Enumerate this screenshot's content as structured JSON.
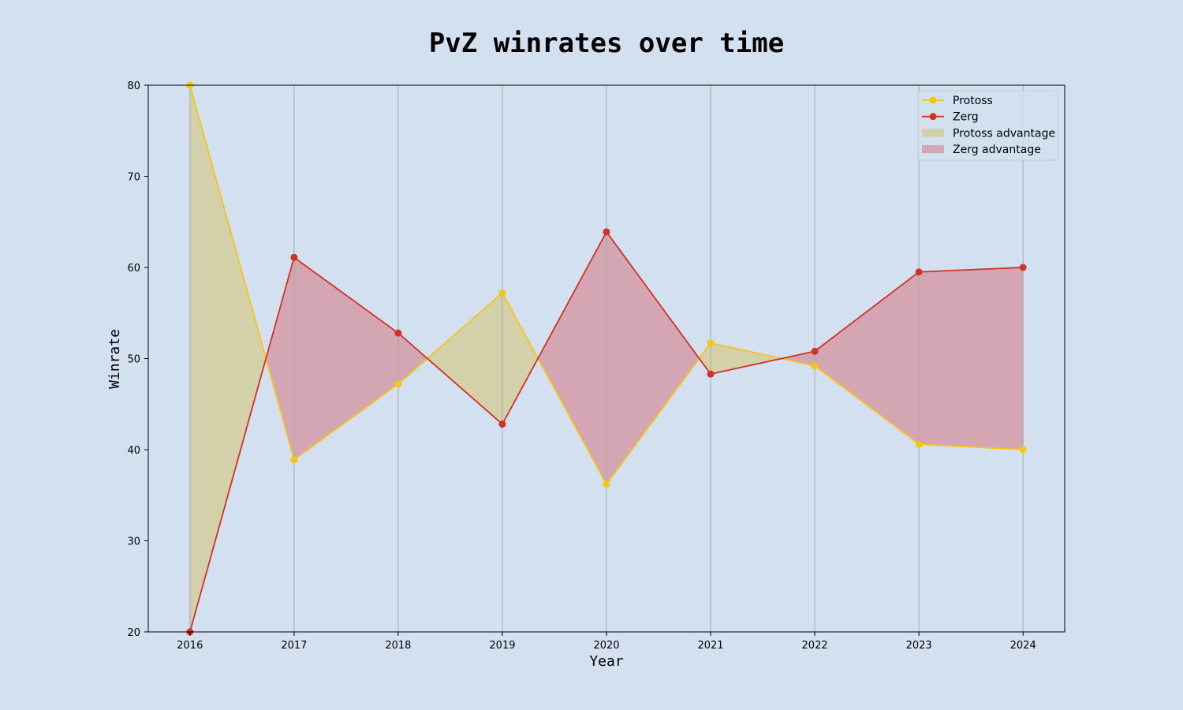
{
  "chart_data": {
    "type": "line",
    "title": "PvZ winrates over time",
    "xlabel": "Year",
    "ylabel": "Winrate",
    "x": [
      2016,
      2017,
      2018,
      2019,
      2020,
      2021,
      2022,
      2023,
      2024
    ],
    "series": [
      {
        "name": "Protoss",
        "values": [
          80,
          38.9,
          47.2,
          57.2,
          36.2,
          51.7,
          49.2,
          40.6,
          40.0
        ],
        "color": "#f5c518"
      },
      {
        "name": "Zerg",
        "values": [
          20,
          61.1,
          52.8,
          42.8,
          63.9,
          48.3,
          50.8,
          59.5,
          60.0
        ],
        "color": "#d03227"
      }
    ],
    "fills": [
      {
        "name": "Protoss advantage",
        "color": "#d4c98d"
      },
      {
        "name": "Zerg advantage",
        "color": "#d48c98"
      }
    ],
    "ylim": [
      20,
      80
    ],
    "yticks": [
      20,
      30,
      40,
      50,
      60,
      70,
      80
    ],
    "grid": "vertical",
    "legend_position": "top-right",
    "background": "#d2e0ef"
  }
}
